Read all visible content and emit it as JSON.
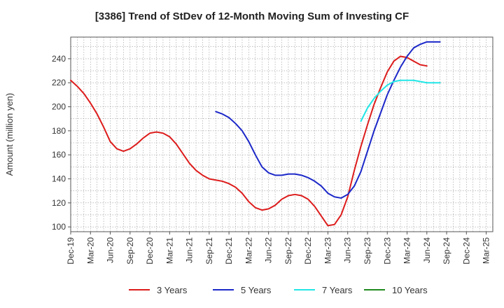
{
  "chart_data": {
    "type": "line",
    "title": "[3386]  Trend of StDev of 12-Month Moving Sum of Investing CF",
    "ylabel": "Amount (million yen)",
    "xlabel": "",
    "ylim": [
      96,
      258
    ],
    "yticks": [
      100,
      120,
      140,
      160,
      180,
      200,
      220,
      240
    ],
    "xtick_labels": [
      "Dec-19",
      "Mar-20",
      "Jun-20",
      "Sep-20",
      "Dec-20",
      "Mar-21",
      "Jun-21",
      "Sep-21",
      "Dec-21",
      "Mar-22",
      "Jun-22",
      "Sep-22",
      "Dec-22",
      "Mar-23",
      "Jun-23",
      "Sep-23",
      "Dec-23",
      "Mar-24",
      "Jun-24",
      "Sep-24",
      "Dec-24",
      "Mar-25"
    ],
    "grid": true,
    "legend_position": "bottom",
    "series": [
      {
        "name": "3 Years",
        "color": "#dd1c1c",
        "start_index": 0,
        "values": [
          222,
          217,
          211,
          203,
          194,
          183,
          171,
          165,
          163,
          165,
          169,
          174,
          178,
          179,
          178,
          175,
          169,
          161,
          153,
          147,
          143,
          140,
          139,
          138,
          136,
          133,
          128,
          121,
          116,
          114,
          115,
          118,
          123,
          126,
          127,
          126,
          123,
          117,
          109,
          101,
          102,
          110,
          125,
          147,
          167,
          185,
          202,
          216,
          229,
          238,
          242,
          241,
          238,
          235,
          234
        ]
      },
      {
        "name": "5 Years",
        "color": "#1c28c8",
        "start_index": 22,
        "values": [
          196,
          194,
          191,
          186,
          180,
          171,
          160,
          150,
          145,
          143,
          143,
          144,
          144,
          143,
          141,
          138,
          134,
          128,
          125,
          124,
          127,
          134,
          146,
          163,
          180,
          195,
          210,
          222,
          233,
          242,
          249,
          252,
          254,
          254,
          254
        ]
      },
      {
        "name": "7 Years",
        "color": "#22e6e6",
        "start_index": 44,
        "values": [
          188,
          199,
          207,
          213,
          218,
          221,
          222,
          222,
          222,
          221,
          220,
          220,
          220
        ]
      },
      {
        "name": "10 Years",
        "color": "#1f8a1f",
        "start_index": 0,
        "values": []
      }
    ]
  }
}
